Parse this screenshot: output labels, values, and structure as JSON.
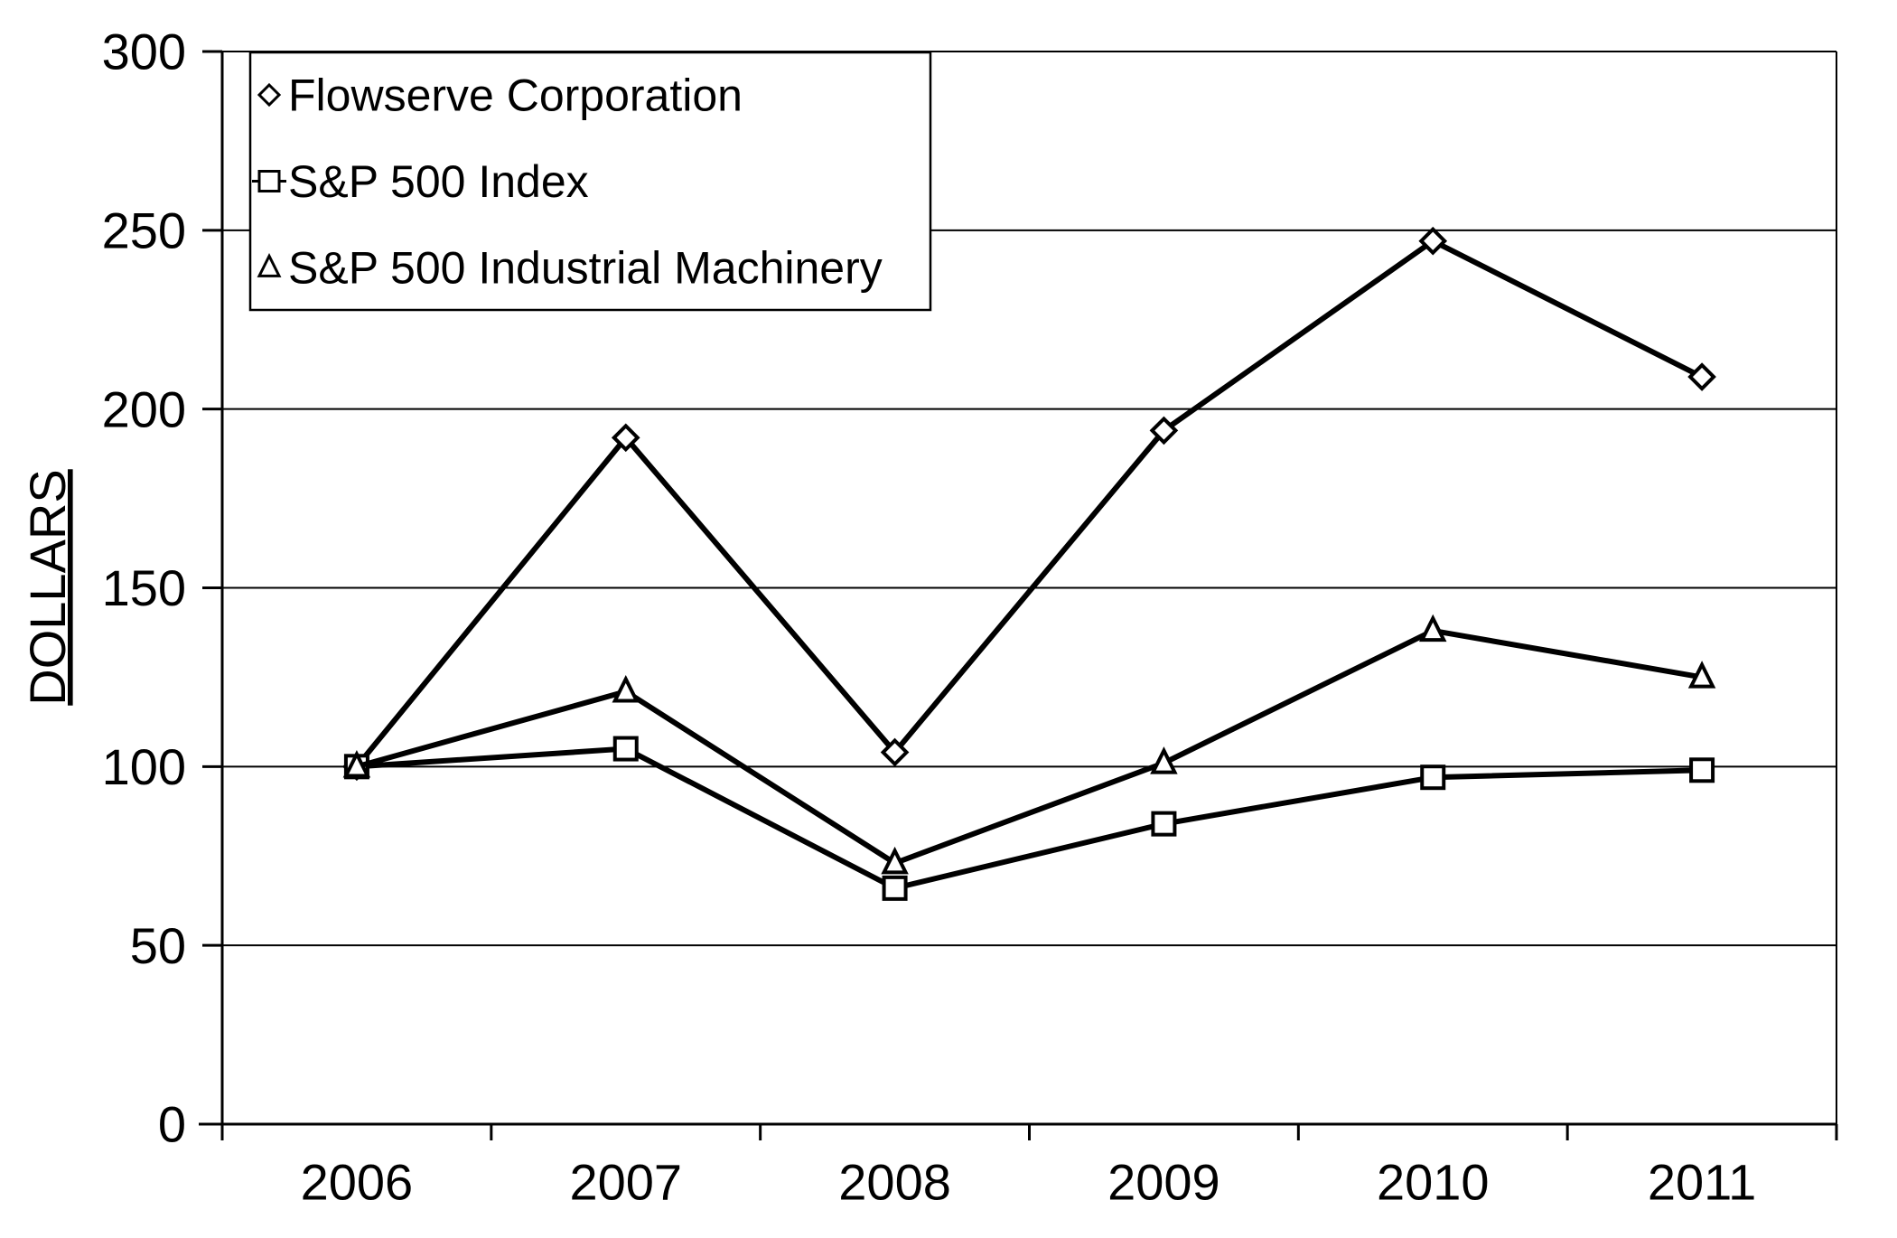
{
  "chart_data": {
    "type": "line",
    "title": "",
    "xlabel": "",
    "ylabel": "DOLLARS",
    "ylabel_underlined": true,
    "categories": [
      "2006",
      "2007",
      "2008",
      "2009",
      "2010",
      "2011"
    ],
    "series": [
      {
        "name": "Flowserve Corporation",
        "marker": "diamond",
        "values": [
          100,
          192,
          104,
          194,
          247,
          209
        ]
      },
      {
        "name": "S&P 500 Index",
        "marker": "square",
        "values": [
          100,
          105,
          66,
          84,
          97,
          99
        ]
      },
      {
        "name": "S&P 500 Industrial Machinery",
        "marker": "triangle",
        "values": [
          100,
          121,
          73,
          101,
          138,
          125
        ]
      }
    ],
    "ylim": [
      0,
      300
    ],
    "ytick_step": 50,
    "yticks": [
      0,
      50,
      100,
      150,
      200,
      250,
      300
    ],
    "grid": true,
    "legend_position": "top-left",
    "line_color": "#000000",
    "marker_fill": "#ffffff",
    "background": "#ffffff",
    "axis_color": "#000000"
  }
}
